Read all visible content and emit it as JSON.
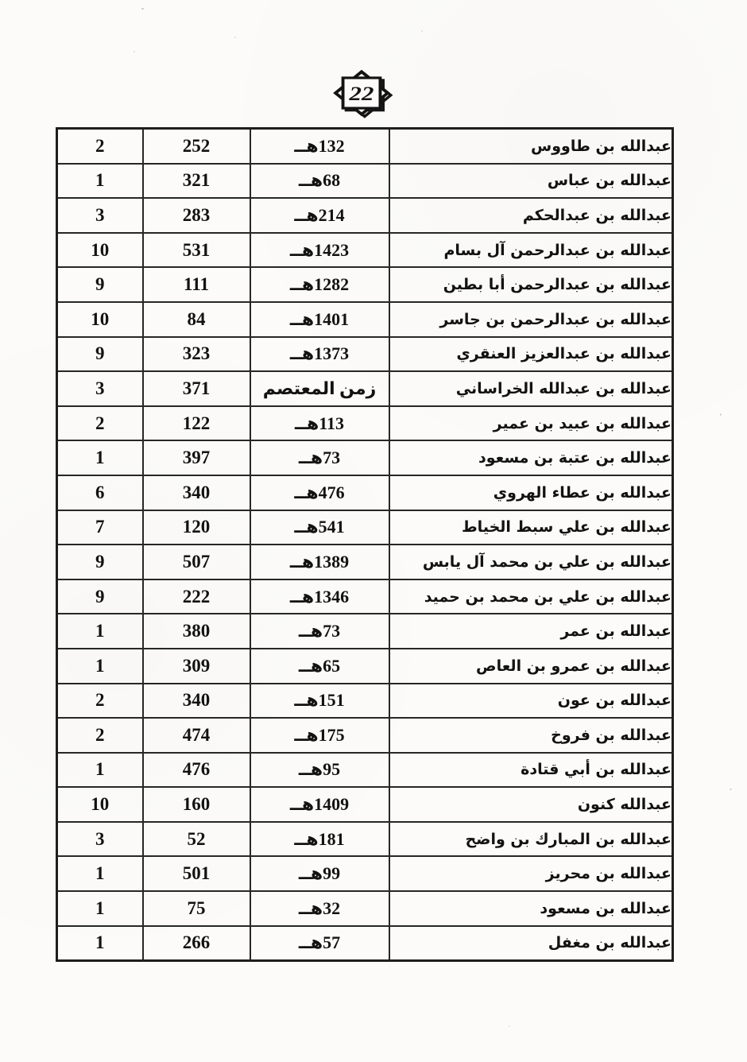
{
  "page": {
    "number": "22"
  },
  "colors": {
    "paper": "#fcfbf9",
    "ink": "#121212",
    "border": "#272727"
  },
  "badge": {
    "shape": "eight-point-star",
    "value": "22"
  },
  "table": {
    "columns": [
      "count",
      "number",
      "date",
      "name"
    ],
    "rows": [
      {
        "count": "2",
        "number": "252",
        "date": "132هــ",
        "name": "عبدالله بن طاووس"
      },
      {
        "count": "1",
        "number": "321",
        "date": "68هــ",
        "name": "عبدالله بن عباس"
      },
      {
        "count": "3",
        "number": "283",
        "date": "214هــ",
        "name": "عبدالله بن عبدالحكم"
      },
      {
        "count": "10",
        "number": "531",
        "date": "1423هــ",
        "name": "عبدالله بن عبدالرحمن آل بسام"
      },
      {
        "count": "9",
        "number": "111",
        "date": "1282هــ",
        "name": "عبدالله بن عبدالرحمن أبا بطين"
      },
      {
        "count": "10",
        "number": "84",
        "date": "1401هــ",
        "name": "عبدالله بن عبدالرحمن بن جاسر"
      },
      {
        "count": "9",
        "number": "323",
        "date": "1373هــ",
        "name": "عبدالله بن عبدالعزيز العنقري"
      },
      {
        "count": "3",
        "number": "371",
        "date": "زمن المعتصم",
        "name": "عبدالله بن عبدالله الخراساني"
      },
      {
        "count": "2",
        "number": "122",
        "date": "113هــ",
        "name": "عبدالله بن عبيد بن عمير"
      },
      {
        "count": "1",
        "number": "397",
        "date": "73هــ",
        "name": "عبدالله بن عتبة بن مسعود"
      },
      {
        "count": "6",
        "number": "340",
        "date": "476هــ",
        "name": "عبدالله بن عطاء الهروي"
      },
      {
        "count": "7",
        "number": "120",
        "date": "541هــ",
        "name": "عبدالله بن علي سبط الخياط"
      },
      {
        "count": "9",
        "number": "507",
        "date": "1389هــ",
        "name": "عبدالله بن علي بن محمد آل يابس"
      },
      {
        "count": "9",
        "number": "222",
        "date": "1346هــ",
        "name": "عبدالله بن علي بن محمد بن حميد"
      },
      {
        "count": "1",
        "number": "380",
        "date": "73هــ",
        "name": "عبدالله بن عمر"
      },
      {
        "count": "1",
        "number": "309",
        "date": "65هــ",
        "name": "عبدالله بن عمرو بن العاص"
      },
      {
        "count": "2",
        "number": "340",
        "date": "151هــ",
        "name": "عبدالله بن عون"
      },
      {
        "count": "2",
        "number": "474",
        "date": "175هــ",
        "name": "عبدالله بن فروخ"
      },
      {
        "count": "1",
        "number": "476",
        "date": "95هــ",
        "name": "عبدالله بن أبي قتادة"
      },
      {
        "count": "10",
        "number": "160",
        "date": "1409هــ",
        "name": "عبدالله كنون"
      },
      {
        "count": "3",
        "number": "52",
        "date": "181هــ",
        "name": "عبدالله بن المبارك بن واضح"
      },
      {
        "count": "1",
        "number": "501",
        "date": "99هــ",
        "name": "عبدالله بن محريز"
      },
      {
        "count": "1",
        "number": "75",
        "date": "32هــ",
        "name": "عبدالله بن مسعود"
      },
      {
        "count": "1",
        "number": "266",
        "date": "57هــ",
        "name": "عبدالله بن مغفل"
      }
    ]
  }
}
